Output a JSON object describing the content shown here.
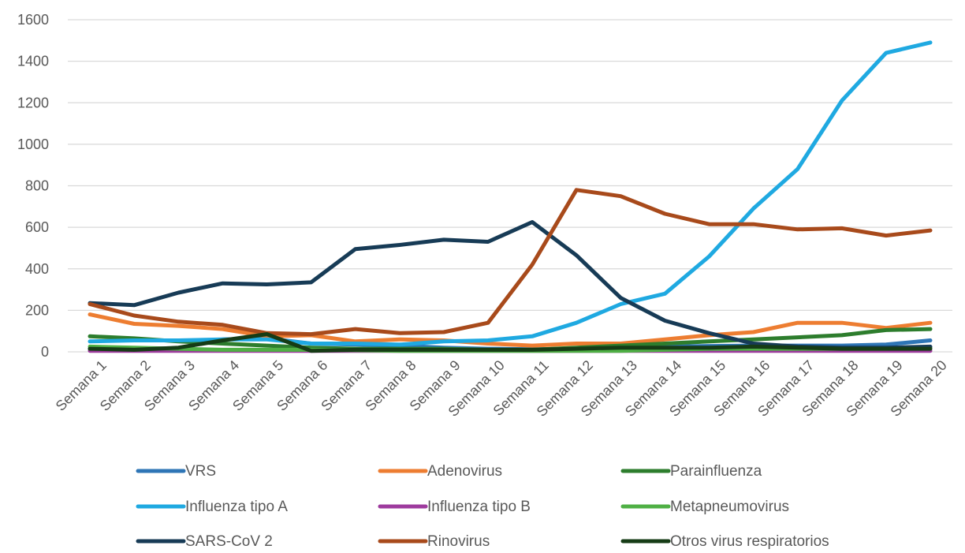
{
  "chart_data": {
    "type": "line",
    "title": "",
    "xlabel": "",
    "ylabel": "",
    "ylim": [
      0,
      1600
    ],
    "yticks": [
      0,
      200,
      400,
      600,
      800,
      1000,
      1200,
      1400,
      1600
    ],
    "grid": true,
    "legend_position": "bottom",
    "categories": [
      "Semana 1",
      "Semana 2",
      "Semana 3",
      "Semana 4",
      "Semana 5",
      "Semana 6",
      "Semana 7",
      "Semana 8",
      "Semana 9",
      "Semana 10",
      "Semana 11",
      "Semana 12",
      "Semana 13",
      "Semana 14",
      "Semana 15",
      "Semana 16",
      "Semana 17",
      "Semana 18",
      "Semana 19",
      "Semana 20"
    ],
    "series": [
      {
        "name": "VRS",
        "color": "#2e75b6",
        "values": [
          15,
          12,
          18,
          60,
          65,
          40,
          35,
          30,
          20,
          15,
          12,
          15,
          20,
          25,
          28,
          30,
          30,
          30,
          35,
          55
        ]
      },
      {
        "name": "Adenovirus",
        "color": "#ed7d31",
        "values": [
          180,
          135,
          125,
          110,
          75,
          80,
          50,
          60,
          55,
          40,
          30,
          40,
          40,
          60,
          80,
          95,
          140,
          140,
          115,
          140
        ]
      },
      {
        "name": "Parainfluenza",
        "color": "#2d7d2d",
        "values": [
          75,
          65,
          50,
          40,
          30,
          20,
          15,
          15,
          15,
          10,
          10,
          20,
          30,
          40,
          50,
          60,
          70,
          80,
          105,
          110
        ]
      },
      {
        "name": "Influenza tipo A",
        "color": "#1fa9e1",
        "values": [
          50,
          55,
          55,
          60,
          60,
          40,
          40,
          35,
          50,
          55,
          75,
          140,
          230,
          280,
          460,
          690,
          880,
          1210,
          1440,
          1490
        ]
      },
      {
        "name": "Influenza tipo B",
        "color": "#9e3b9e",
        "values": [
          5,
          5,
          5,
          5,
          5,
          5,
          5,
          5,
          5,
          5,
          5,
          5,
          5,
          5,
          5,
          5,
          5,
          5,
          5,
          5
        ]
      },
      {
        "name": "Metapneumovirus",
        "color": "#4fb045",
        "values": [
          25,
          20,
          15,
          10,
          10,
          10,
          8,
          5,
          5,
          5,
          5,
          5,
          5,
          10,
          15,
          15,
          15,
          15,
          15,
          20
        ]
      },
      {
        "name": "SARS-CoV 2",
        "color": "#173b56",
        "values": [
          235,
          225,
          285,
          330,
          325,
          335,
          495,
          515,
          540,
          530,
          625,
          465,
          260,
          150,
          90,
          40,
          25,
          20,
          20,
          25
        ]
      },
      {
        "name": "Rinovirus",
        "color": "#a84a1b",
        "values": [
          230,
          175,
          145,
          130,
          90,
          85,
          110,
          90,
          95,
          140,
          420,
          780,
          750,
          665,
          615,
          615,
          590,
          595,
          560,
          585
        ]
      },
      {
        "name": "Otros virus respiratorios",
        "color": "#163c16",
        "values": [
          15,
          10,
          20,
          55,
          85,
          5,
          10,
          10,
          10,
          10,
          10,
          15,
          20,
          20,
          20,
          25,
          20,
          15,
          15,
          15
        ]
      }
    ]
  }
}
